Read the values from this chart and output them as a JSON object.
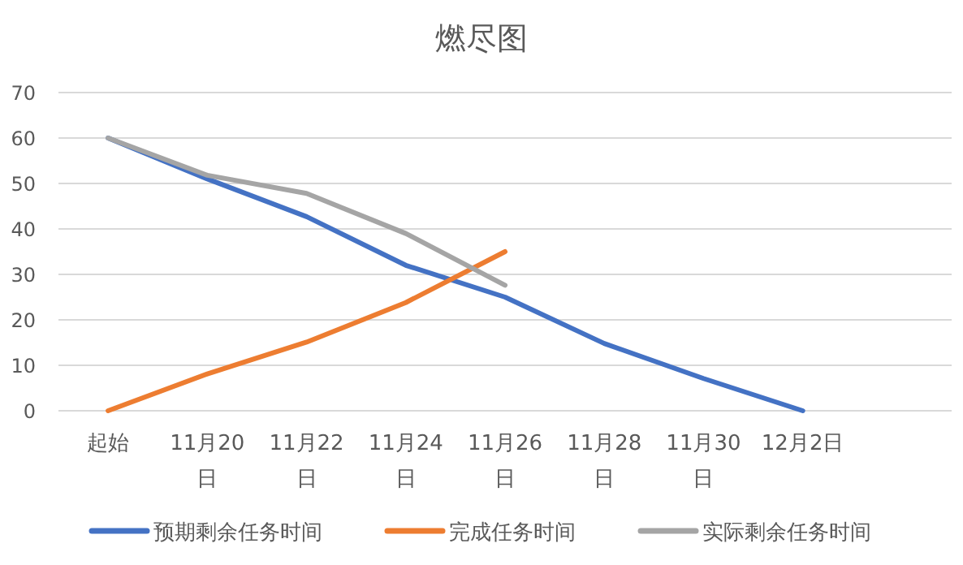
{
  "chart_data": {
    "type": "line",
    "title": "燃尽图",
    "categories": [
      "起始",
      "11月20日",
      "11月22日",
      "11月24日",
      "11月26日",
      "11月28日",
      "11月30日",
      "12月2日",
      null
    ],
    "series": [
      {
        "name": "预期剩余任务时间",
        "color": "#4472c4",
        "values": [
          60,
          51,
          42.7,
          32,
          25,
          14.8,
          7.1,
          0,
          null
        ]
      },
      {
        "name": "完成任务时间",
        "color": "#ed7d31",
        "values": [
          0,
          8.1,
          15.1,
          23.8,
          35,
          null,
          null,
          null,
          null
        ]
      },
      {
        "name": "实际剩余任务时间",
        "color": "#a5a5a5",
        "values": [
          60,
          51.8,
          47.8,
          39,
          27.6,
          null,
          null,
          null,
          null
        ]
      }
    ],
    "ylim": [
      0,
      70
    ],
    "yticks": [
      0,
      10,
      20,
      30,
      40,
      50,
      60,
      70
    ],
    "grid": "y",
    "legend": "bottom",
    "marker": "none",
    "line_style": "solid"
  }
}
